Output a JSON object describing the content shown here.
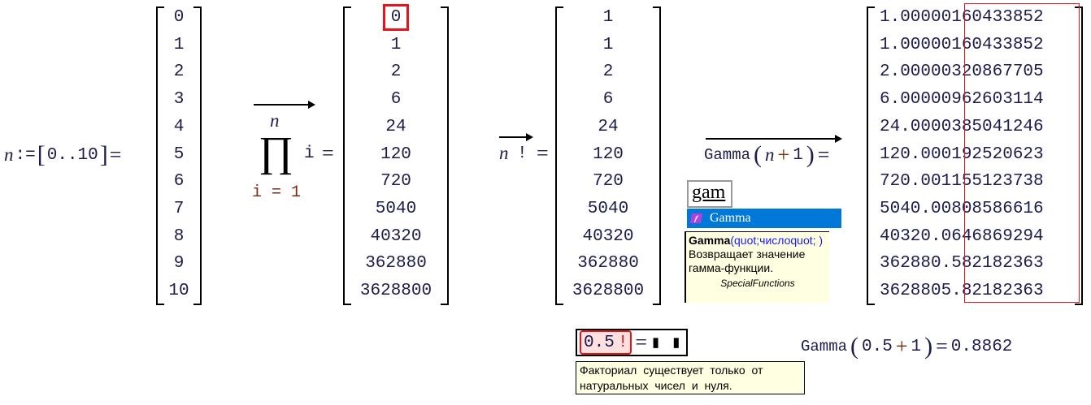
{
  "def": {
    "var": "n",
    "assign": ":=",
    "range_open": "[",
    "range": "0..10",
    "range_close": "]",
    "eq": "="
  },
  "matrix_n": [
    "0",
    "1",
    "2",
    "3",
    "4",
    "5",
    "6",
    "7",
    "8",
    "9",
    "10"
  ],
  "product": {
    "upper": "n",
    "symbol": "∏",
    "lower": "i = 1",
    "body": "i",
    "eq": "="
  },
  "matrix_prod": [
    "0",
    "1",
    "2",
    "6",
    "24",
    "120",
    "720",
    "5040",
    "40320",
    "362880",
    "3628800"
  ],
  "factorial": {
    "var": "n",
    "op": "!",
    "eq": "="
  },
  "matrix_fact": [
    "1",
    "1",
    "2",
    "6",
    "24",
    "120",
    "720",
    "5040",
    "40320",
    "362880",
    "3628800"
  ],
  "gamma_expr": {
    "func": "Gamma",
    "open": "(",
    "arg": "n",
    "plus": "+",
    "one": "1",
    "close": ")",
    "eq": "="
  },
  "matrix_gamma_prefix": [
    "1.00000",
    "1.00000",
    "2.00000",
    "6.00000",
    "24.0000",
    "120.000",
    "720.001",
    "5040.00",
    "40320.0",
    "362880.",
    "3628805"
  ],
  "matrix_gamma_suffix": [
    "160433852",
    "160433852",
    "320867705",
    "962603114",
    "385041246",
    "192520623",
    "155123738",
    "808586616",
    "646869294",
    "582182363",
    ".82182363"
  ],
  "autocomplete": {
    "input": "gam",
    "suggestion": "Gamma",
    "tooltip_func": "Gamma",
    "tooltip_args": "(quot;числоquot; )",
    "tooltip_desc": "Возвращает значение гамма-функции.",
    "tooltip_category": "SpecialFunctions"
  },
  "error_expr": {
    "value": "0.5",
    "op": "!",
    "eq": "=",
    "placeholder": "▮ ▮",
    "message": "Факториал существует только от натуральных чисел и нуля."
  },
  "gamma_half": {
    "func": "Gamma",
    "open": "(",
    "a": "0.5",
    "plus": "+",
    "b": "1",
    "close": ")",
    "eq": "=",
    "result": "0.8862"
  },
  "colors": {
    "highlight_red": "#e8141c",
    "dropdown_blue": "#0078d7",
    "tooltip_bg": "#ffffe1",
    "error_bg": "#fde0e0"
  }
}
